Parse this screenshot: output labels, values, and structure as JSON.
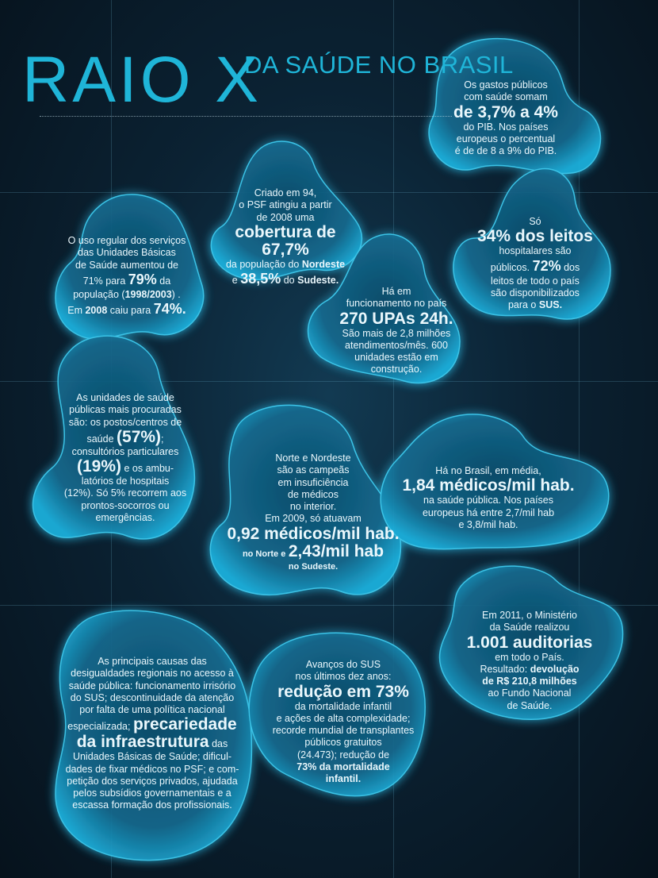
{
  "title": {
    "main": "RAIO X",
    "sub_line1": "DA SAÚDE",
    "sub_line2": "NO BRASIL"
  },
  "colors": {
    "accent": "#1fb5d8",
    "blob": "#1aa5cf",
    "background": "#0b2233"
  },
  "gastos": {
    "l1": "Os gastos públicos",
    "l2": "com saúde somam",
    "hl": "de 3,7% a 4%",
    "l3": "do PIB. Nos países",
    "l4": "europeus o percentual",
    "l5": "é de de 8 a 9% do PIB."
  },
  "psf": {
    "l1": "Criado em 94,",
    "l2": "o PSF atingiu a partir",
    "l3": "de 2008 uma",
    "hl": "cobertura de 67,7%",
    "l4": "da população do",
    "b1": "Nordeste",
    "l5a": "e",
    "hl2": "38,5%",
    "l5b": "do",
    "b2": "Sudeste."
  },
  "ubs": {
    "l1": "O uso regular dos serviços",
    "l2": "das Unidades Básicas",
    "l3": "de Saúde aumentou de",
    "l4a": "71% para",
    "hl1": "79%",
    "l4b": "da",
    "l5a": "população (",
    "b1": "1998/2003",
    "l5b": ") .",
    "l6a": "Em",
    "b2": "2008",
    "l6b": "caiu para",
    "hl2": "74%."
  },
  "leitos": {
    "l1": "Só",
    "hl1": "34% dos leitos",
    "l2": "hospitalares são",
    "l3a": "públicos.",
    "hl2": "72%",
    "l3b": "dos",
    "l4": "leitos de todo o país",
    "l5": "são disponibilizados",
    "l6a": "para o",
    "b1": "SUS."
  },
  "upas": {
    "l1": "Há em",
    "l2": "funcionamento no país",
    "hl": "270 UPAs 24h.",
    "l3": "São mais de 2,8 milhões",
    "l4": "atendimentos/mês. 600",
    "l5": "unidades estão em",
    "l6": "construção."
  },
  "unidades": {
    "l1": "As unidades de saúde",
    "l2": "públicas mais procuradas",
    "l3": "são: os postos/centros de",
    "l4a": "saúde",
    "hl1": "(57%)",
    "l4b": ";",
    "l5": "consultórios particulares",
    "hl2": "(19%)",
    "l6": "e os ambu-",
    "l7": "latórios de hospitais",
    "l8": "(12%). Só 5% recorrem aos",
    "l9": "prontos-socorros ou",
    "l10": "emergências."
  },
  "norte": {
    "l1": "Norte e Nordeste",
    "l2": "são as campeãs",
    "l3": "em insuficiência",
    "l4": "de médicos",
    "l5": "no interior.",
    "l6": "Em 2009, só atuavam",
    "hl1": "0,92 médicos/mil hab.",
    "b1": "no Norte e",
    "hl2": "2,43/mil hab",
    "b2": "no Sudeste."
  },
  "medicos": {
    "l1": "Há no Brasil, em média,",
    "hl": "1,84 médicos/mil hab.",
    "l2": "na saúde pública. Nos países",
    "l3": "europeus há entre 2,7/mil hab",
    "l4": "e 3,8/mil hab."
  },
  "auditorias": {
    "l1": "Em 2011, o Ministério",
    "l2": "da Saúde realizou",
    "hl": "1.001 auditorias",
    "l3": "em todo o País.",
    "l4a": "Resultado:",
    "b1": "devolução",
    "b2": "de R$ 210,8 milhões",
    "l5": "ao Fundo Nacional",
    "l6": "de Saúde."
  },
  "causas": {
    "l1": "As principais causas das",
    "l2": "desigualdades regionais no acesso à",
    "l3": "saúde pública: funcionamento irrisório",
    "l4": "do SUS; descontinuidade da atenção",
    "l5": "por falta de uma política nacional",
    "l6a": "especializada;",
    "hl1": "precariedade",
    "hl2": "da infraestrutura",
    "l7a": "das",
    "l8": "Unidades Básicas de Saúde; dificul-",
    "l9": "dades de fixar médicos no PSF; e com-",
    "l10": "petição dos serviços privados, ajudada",
    "l11": "pelos subsídios governamentais e a",
    "l12": "escassa formação dos profissionais."
  },
  "avancos": {
    "l1": "Avanços do SUS",
    "l2": "nos últimos dez anos:",
    "hl": "redução em 73%",
    "l3": "da mortalidade infantil",
    "l4": "e ações de alta complexidade;",
    "l5": "recorde mundial de transplantes",
    "l6": "públicos gratuitos",
    "l7a": "(24.473); redução de",
    "b1": "73% da mortalidade",
    "b2": "infantil."
  }
}
